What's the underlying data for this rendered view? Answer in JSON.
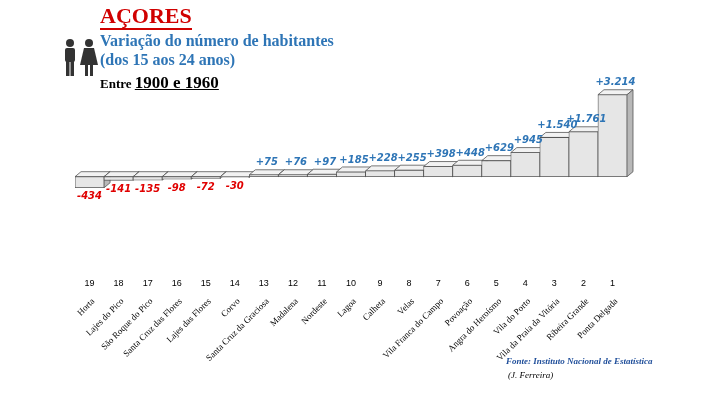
{
  "chart_data": {
    "type": "bar",
    "title": "AÇORES",
    "subtitle": [
      "Variação do número de habitantes",
      "(dos 15 aos 24 anos)"
    ],
    "period_prefix": "Entre",
    "period": "1900 e 1960",
    "source": "Fonte: Instituto Nacional de Estatística",
    "author": "(J. Ferreira)",
    "categories": [
      "Horta",
      "Lajes do Pico",
      "São Roque do Pico",
      "Santa Cruz das Flores",
      "Lajes das Flores",
      "Corvo",
      "Santa Cruz da Graciosa",
      "Madalena",
      "Nordeste",
      "Lagoa",
      "Calheta",
      "Velas",
      "Vila Franca do Campo",
      "Povoação",
      "Angra do Heroísmo",
      "Vila do Porto",
      "Vila da Praia da Vitória",
      "Ribeira Grande",
      "Ponta Delgada"
    ],
    "ranks": [
      19,
      18,
      17,
      16,
      15,
      14,
      13,
      12,
      11,
      10,
      9,
      8,
      7,
      6,
      5,
      4,
      3,
      2,
      1
    ],
    "values": [
      -434,
      -141,
      -135,
      -98,
      -72,
      -30,
      75,
      76,
      97,
      185,
      228,
      255,
      398,
      448,
      629,
      945,
      1540,
      1761,
      3214
    ],
    "value_labels": [
      "-434",
      "-141",
      "-135",
      "-98",
      "-72",
      "-30",
      "+75",
      "+76",
      "+97",
      "+185",
      "+228",
      "+255",
      "+398",
      "+448",
      "+629",
      "+945",
      "+1.540",
      "+1.761",
      "+3.214"
    ],
    "color": "#e6e6e6",
    "ylim": [
      -600,
      3400
    ],
    "grid": false,
    "data_labels": true,
    "tick_labels": false
  }
}
